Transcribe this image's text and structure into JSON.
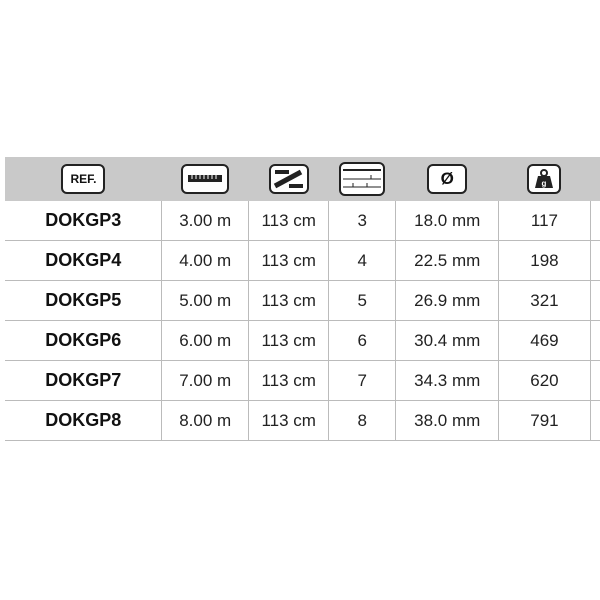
{
  "header": {
    "ref_label": "REF.",
    "icons": [
      "ruler-icon",
      "folded-length-icon",
      "sections-icon",
      "diameter-icon",
      "weight-icon"
    ],
    "diameter_symbol": "Ø"
  },
  "rows": [
    {
      "ref": "DOKGP3",
      "length": "3.00 m",
      "folded": "113 cm",
      "sections": "3",
      "diameter": "18.0 mm",
      "weight": "117"
    },
    {
      "ref": "DOKGP4",
      "length": "4.00 m",
      "folded": "113 cm",
      "sections": "4",
      "diameter": "22.5 mm",
      "weight": "198"
    },
    {
      "ref": "DOKGP5",
      "length": "5.00 m",
      "folded": "113 cm",
      "sections": "5",
      "diameter": "26.9 mm",
      "weight": "321"
    },
    {
      "ref": "DOKGP6",
      "length": "6.00 m",
      "folded": "113 cm",
      "sections": "6",
      "diameter": "30.4 mm",
      "weight": "469"
    },
    {
      "ref": "DOKGP7",
      "length": "7.00 m",
      "folded": "113 cm",
      "sections": "7",
      "diameter": "34.3 mm",
      "weight": "620"
    },
    {
      "ref": "DOKGP8",
      "length": "8.00 m",
      "folded": "113 cm",
      "sections": "8",
      "diameter": "38.0 mm",
      "weight": "791"
    }
  ]
}
